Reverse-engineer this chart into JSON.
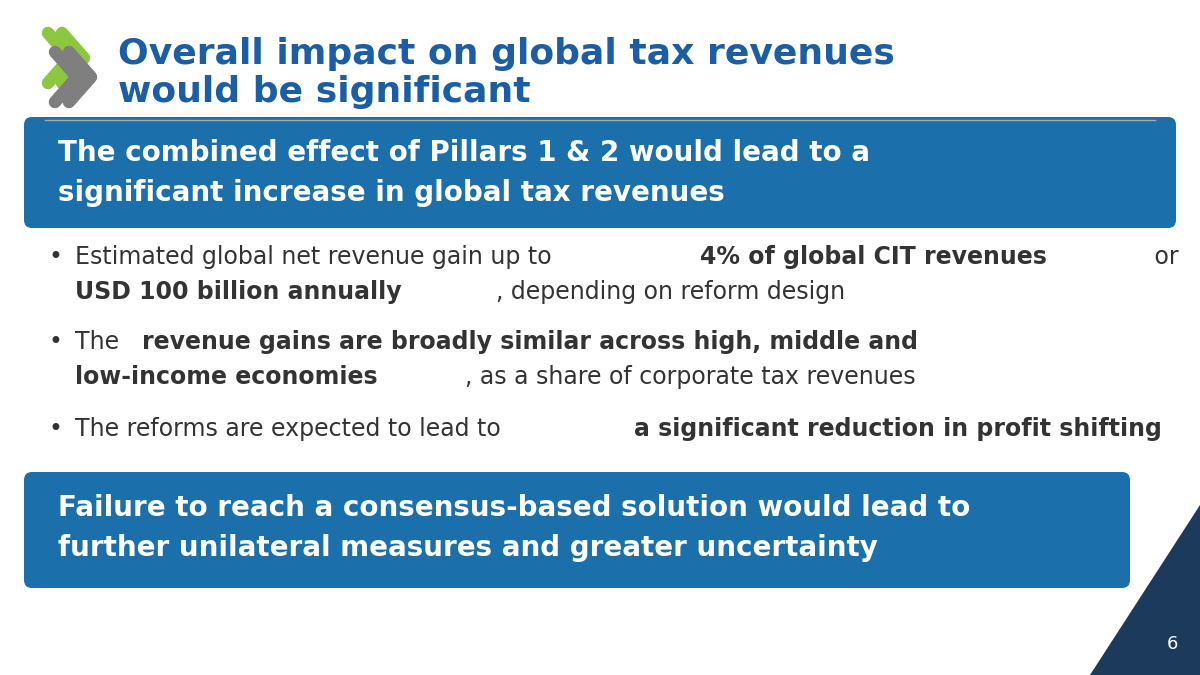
{
  "title_line1": "Overall impact on global tax revenues",
  "title_line2": "would be significant",
  "title_color": "#1B5EA6",
  "bg_color": "#FFFFFF",
  "box1_color": "#1B6FAB",
  "box1_text_line1": "The combined effect of Pillars 1 & 2 would lead to a",
  "box1_text_line2": "significant increase in global tax revenues",
  "box2_color": "#1B6FAB",
  "box2_text_line1": "Failure to reach a consensus-based solution would lead to",
  "box2_text_line2": "further unilateral measures and greater uncertainty",
  "text_color": "#333333",
  "separator_color": "#AAAAAA",
  "page_number": "6",
  "logo_green_color": "#8DC63F",
  "logo_gray_color": "#7F7F7F",
  "corner_navy": "#1B3A5C"
}
